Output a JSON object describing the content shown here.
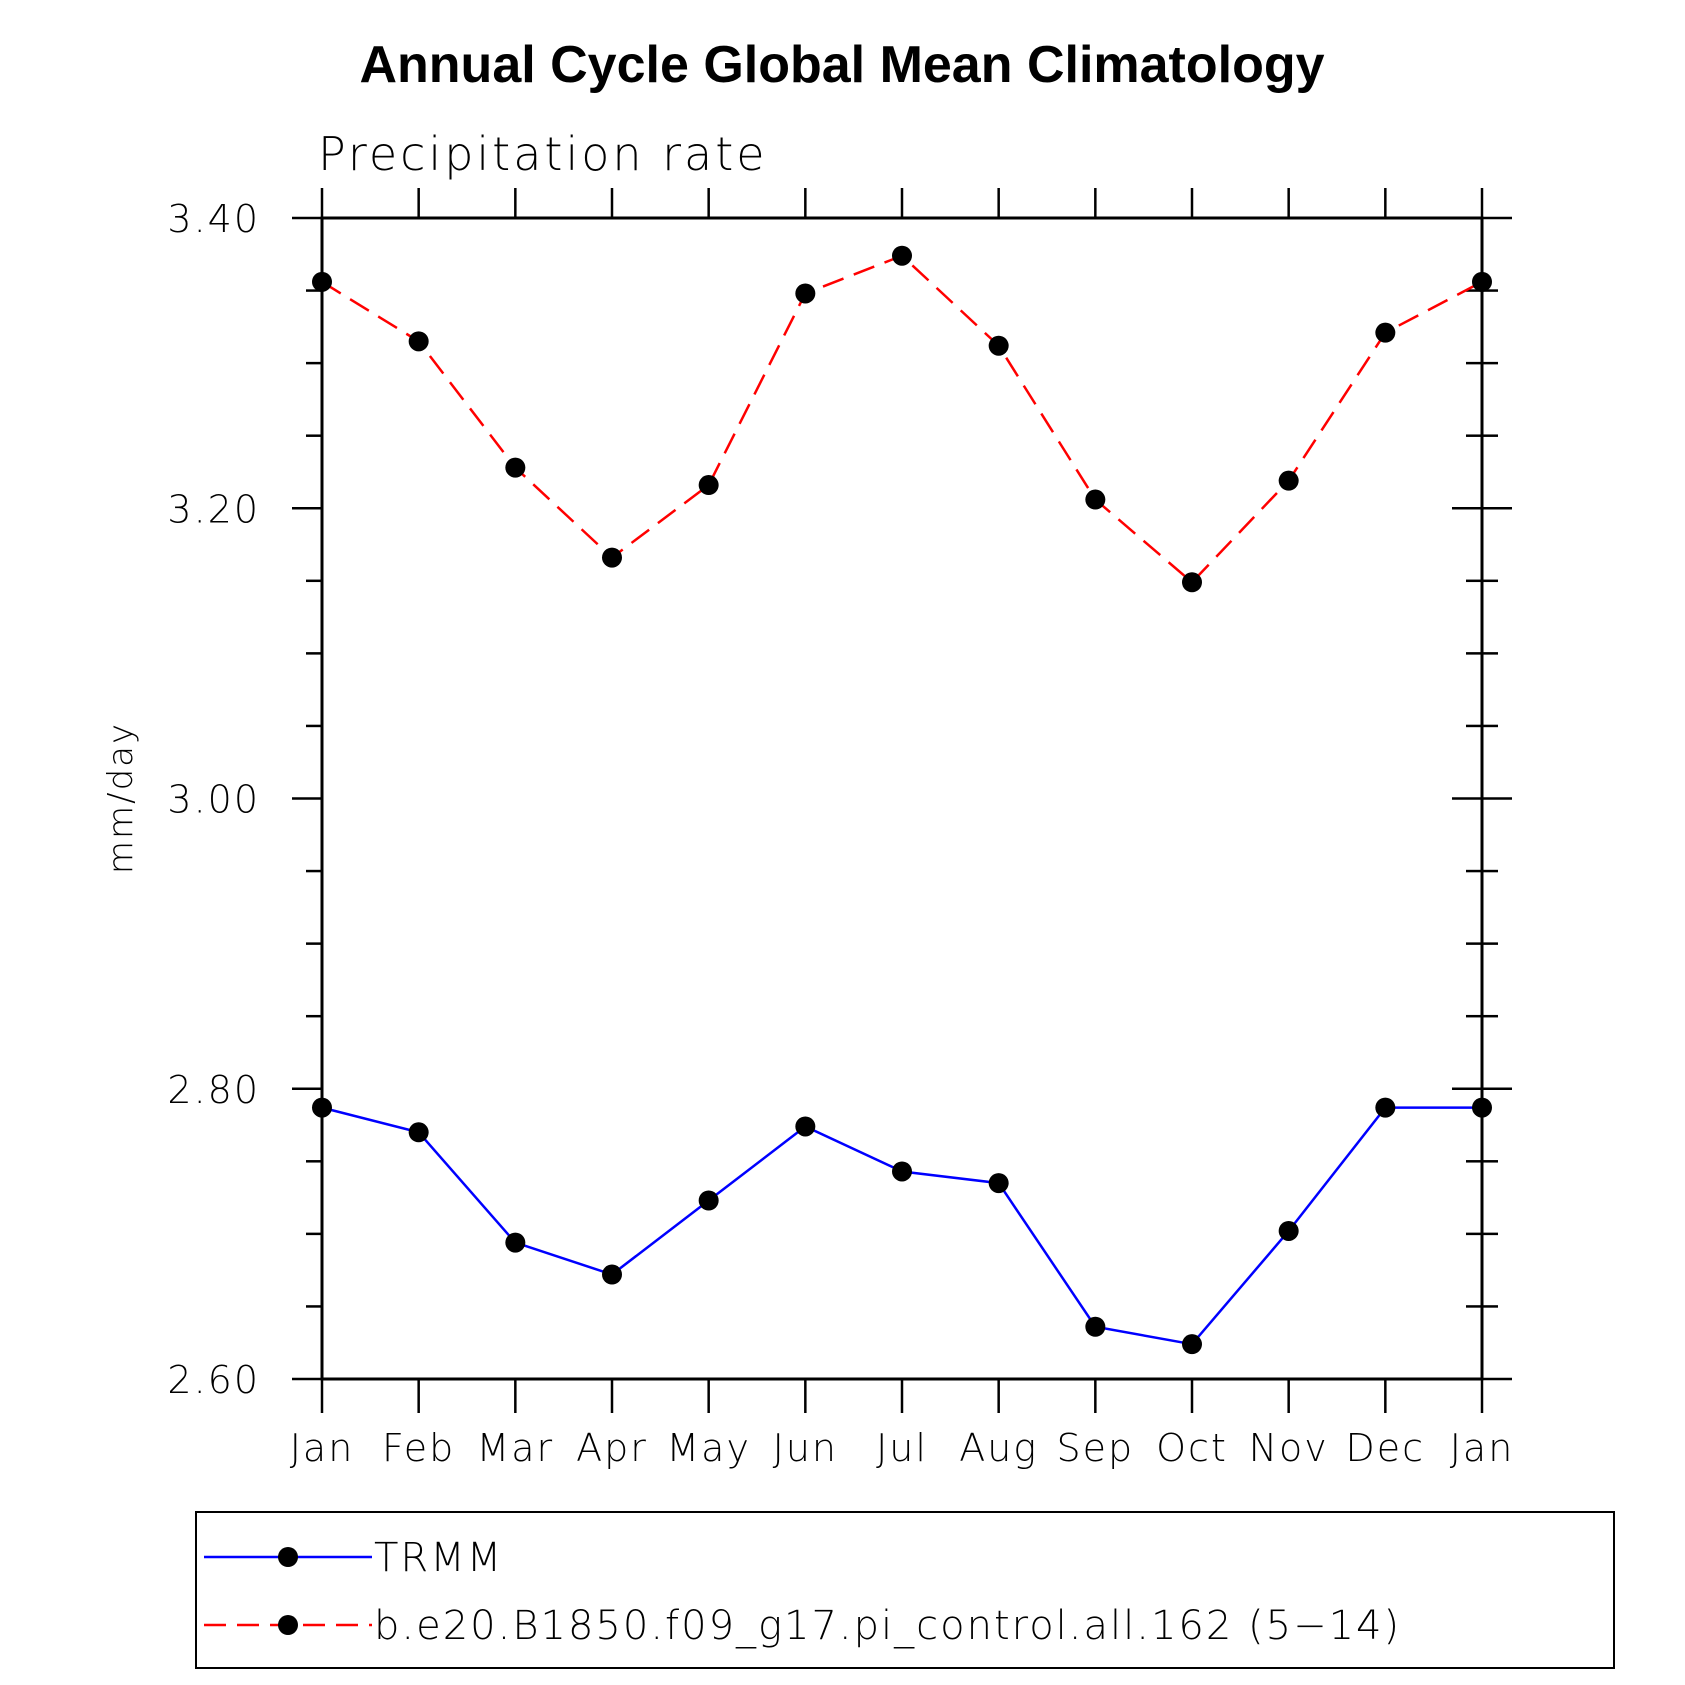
{
  "chart_data": {
    "type": "line",
    "title": "Annual Cycle Global Mean Climatology",
    "subtitle": "Precipitation rate",
    "xlabel": "",
    "ylabel": "mm/day",
    "categories": [
      "Jan",
      "Feb",
      "Mar",
      "Apr",
      "May",
      "Jun",
      "Jul",
      "Aug",
      "Sep",
      "Oct",
      "Nov",
      "Dec",
      "Jan"
    ],
    "ylim": [
      2.6,
      3.4
    ],
    "yticks": [
      "2.60",
      "2.80",
      "3.00",
      "3.20",
      "3.40"
    ],
    "grid": false,
    "legend_position": "bottom",
    "series": [
      {
        "name": "TRMM",
        "color": "#0000ff",
        "line_style": "solid",
        "marker": "filled-circle",
        "values": [
          2.787,
          2.77,
          2.694,
          2.672,
          2.723,
          2.774,
          2.743,
          2.735,
          2.636,
          2.624,
          2.702,
          2.787,
          2.787
        ]
      },
      {
        "name": "b.e20.B1850.f09_g17.pi_control.all.162 (5−14)",
        "color": "#ff0000",
        "line_style": "dashed",
        "marker": "filled-circle",
        "values": [
          3.356,
          3.315,
          3.228,
          3.166,
          3.216,
          3.348,
          3.374,
          3.312,
          3.206,
          3.149,
          3.219,
          3.321,
          3.356
        ]
      }
    ]
  }
}
